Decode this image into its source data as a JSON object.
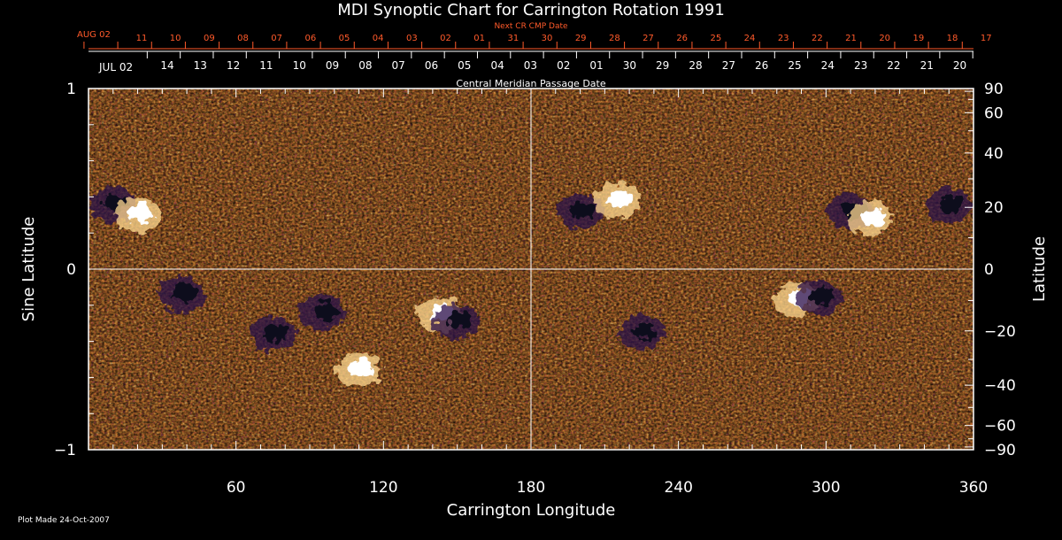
{
  "chart_data": {
    "type": "heatmap",
    "title": "MDI Synoptic Chart for Carrington Rotation 1991",
    "xlabel": "Carrington Longitude",
    "ylabel": "Sine Latitude",
    "y2label": "Latitude",
    "xlim": [
      0,
      360
    ],
    "ylim": [
      -1,
      1
    ],
    "x_ticks": [
      60,
      120,
      180,
      240,
      300,
      360
    ],
    "y_ticks": [
      {
        "value": 1,
        "label": "1"
      },
      {
        "value": 0,
        "label": "0"
      },
      {
        "value": -1,
        "label": "−1"
      }
    ],
    "lat_ticks": [
      90,
      60,
      40,
      20,
      0,
      -20,
      -40,
      -60,
      -90
    ],
    "lat_tick_labels": [
      "90",
      "60",
      "40",
      "20",
      "0",
      "−20",
      "−40",
      "−60",
      "−90"
    ],
    "grid": "lines at longitude 180 and sine latitude 0",
    "colormap": [
      "#1e0e4a",
      "#5a1230",
      "#c0280a",
      "#ff6a10",
      "#ffb050",
      "#ffffff"
    ],
    "cmp_axis": {
      "label": "Central Meridian Passage Date",
      "start_label": "JUL 02",
      "dates": [
        "14",
        "13",
        "12",
        "11",
        "10",
        "09",
        "08",
        "07",
        "06",
        "05",
        "04",
        "03",
        "02",
        "01",
        "30",
        "29",
        "28",
        "27",
        "26",
        "25",
        "24",
        "23",
        "22",
        "21",
        "20"
      ],
      "color": "#ffffff"
    },
    "next_cr_axis": {
      "label": "Next CR CMP Date",
      "start_label": "AUG 02",
      "dates": [
        "11",
        "10",
        "09",
        "08",
        "07",
        "06",
        "05",
        "04",
        "03",
        "02",
        "01",
        "31",
        "30",
        "29",
        "28",
        "27",
        "26",
        "25",
        "24",
        "23",
        "22",
        "21",
        "20",
        "19",
        "18",
        "17"
      ],
      "color": "#ff5a2a"
    },
    "active_regions": [
      {
        "lon": 10,
        "sinlat": 0.36,
        "polarity": "negative"
      },
      {
        "lon": 20,
        "sinlat": 0.3,
        "polarity": "positive"
      },
      {
        "lon": 38,
        "sinlat": -0.14,
        "polarity": "negative"
      },
      {
        "lon": 75,
        "sinlat": -0.36,
        "polarity": "negative"
      },
      {
        "lon": 95,
        "sinlat": -0.24,
        "polarity": "negative"
      },
      {
        "lon": 110,
        "sinlat": -0.56,
        "polarity": "positive"
      },
      {
        "lon": 143,
        "sinlat": -0.25,
        "polarity": "positive"
      },
      {
        "lon": 150,
        "sinlat": -0.29,
        "polarity": "negative"
      },
      {
        "lon": 200,
        "sinlat": 0.32,
        "polarity": "negative"
      },
      {
        "lon": 215,
        "sinlat": 0.38,
        "polarity": "positive"
      },
      {
        "lon": 225,
        "sinlat": -0.35,
        "polarity": "negative"
      },
      {
        "lon": 288,
        "sinlat": -0.17,
        "polarity": "positive"
      },
      {
        "lon": 297,
        "sinlat": -0.16,
        "polarity": "negative"
      },
      {
        "lon": 310,
        "sinlat": 0.32,
        "polarity": "negative"
      },
      {
        "lon": 318,
        "sinlat": 0.28,
        "polarity": "positive"
      },
      {
        "lon": 350,
        "sinlat": 0.35,
        "polarity": "negative"
      }
    ]
  },
  "footer": {
    "plot_made": "Plot Made 24-Oct-2007"
  }
}
